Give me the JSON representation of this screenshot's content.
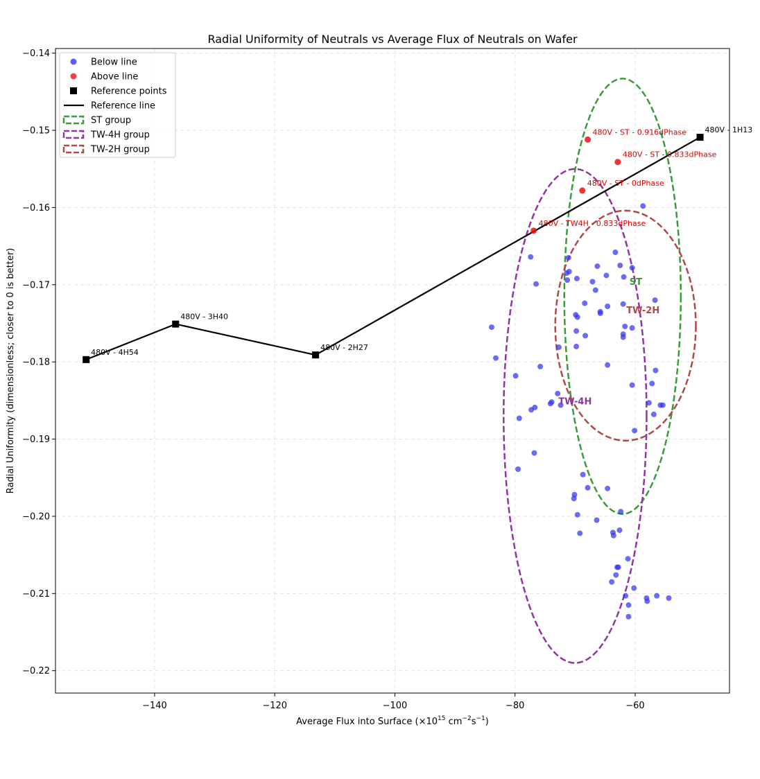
{
  "chart_data": {
    "type": "scatter",
    "title": "Radial Uniformity of Neutrals vs Average Flux of Neutrals on Wafer",
    "xlabel": "Average Flux into Surface (×10",
    "xlabel_exp": "15",
    "xlabel_unit": " cm",
    "xlabel_unit_exp": "−2",
    "xlabel_unit2": "s",
    "xlabel_unit2_exp": "−1",
    "xlabel_close": ")",
    "ylabel": "Radial Uniformity (dimensionless; closer to 0 is better)",
    "xlim": [
      -156.5,
      -44.3
    ],
    "ylim": [
      -0.2229,
      -0.1394
    ],
    "xticks": [
      -140,
      -120,
      -100,
      -80,
      -60
    ],
    "xtick_labels": [
      "−140",
      "−120",
      "−100",
      "−80",
      "−60"
    ],
    "yticks": [
      -0.22,
      -0.21,
      -0.2,
      -0.19,
      -0.18,
      -0.17,
      -0.16,
      -0.15,
      -0.14
    ],
    "ytick_labels": [
      "−0.22",
      "−0.21",
      "−0.20",
      "−0.19",
      "−0.18",
      "−0.17",
      "−0.16",
      "−0.15",
      "−0.14"
    ],
    "grid": true,
    "legend_position": "upper-left",
    "legend": [
      {
        "label": "Below line",
        "kind": "dot",
        "color": "#3333ee"
      },
      {
        "label": "Above line",
        "kind": "dot",
        "color": "#ee1111"
      },
      {
        "label": "Reference points",
        "kind": "square",
        "color": "#000000"
      },
      {
        "label": "Reference line",
        "kind": "line",
        "color": "#000000"
      },
      {
        "label": "ST group",
        "kind": "dashed",
        "color": "#3a9a3a"
      },
      {
        "label": "TW-4H group",
        "kind": "dashed",
        "color": "#8e35a0"
      },
      {
        "label": "TW-2H group",
        "kind": "dashed",
        "color": "#b04848"
      }
    ],
    "colors": {
      "below": "#3333ee",
      "above": "#ee1111",
      "reference": "#000000"
    },
    "reference_points": [
      {
        "x": -151.4,
        "y": -0.1797,
        "label": "480V - 4H54"
      },
      {
        "x": -136.5,
        "y": -0.1751,
        "label": "480V - 3H40"
      },
      {
        "x": -113.2,
        "y": -0.1791,
        "label": "480V - 2H27"
      },
      {
        "x": -49.2,
        "y": -0.1509,
        "label": "480V - 1H13"
      }
    ],
    "above_points": [
      {
        "x": -67.9,
        "y": -0.1512,
        "label": "480V - ST - 0.916dPhase"
      },
      {
        "x": -62.9,
        "y": -0.1541,
        "label": "480V - ST - 0.833dPhase"
      },
      {
        "x": -68.8,
        "y": -0.1578,
        "label": "480V - ST - 0dPhase"
      },
      {
        "x": -76.9,
        "y": -0.163,
        "label": "480V - TW4H - 0.833dPhase"
      }
    ],
    "below_points": [
      [
        -58.7,
        -0.1598
      ],
      [
        -63.3,
        -0.1658
      ],
      [
        -77.4,
        -0.1664
      ],
      [
        -71.1,
        -0.1665
      ],
      [
        -66.3,
        -0.1676
      ],
      [
        -62.5,
        -0.1675
      ],
      [
        -60.5,
        -0.1678
      ],
      [
        -71.0,
        -0.1683
      ],
      [
        -71.4,
        -0.1685
      ],
      [
        -64.8,
        -0.1688
      ],
      [
        -61.9,
        -0.169
      ],
      [
        -69.7,
        -0.1692
      ],
      [
        -71.3,
        -0.1694
      ],
      [
        -67.1,
        -0.1696
      ],
      [
        -76.5,
        -0.1699
      ],
      [
        -66.6,
        -0.1707
      ],
      [
        -56.7,
        -0.172
      ],
      [
        -68.4,
        -0.1724
      ],
      [
        -62.0,
        -0.1725
      ],
      [
        -64.6,
        -0.1728
      ],
      [
        -65.8,
        -0.1735
      ],
      [
        -65.8,
        -0.1737
      ],
      [
        -69.9,
        -0.1739
      ],
      [
        -69.6,
        -0.1742
      ],
      [
        -83.9,
        -0.1755
      ],
      [
        -61.7,
        -0.1754
      ],
      [
        -60.5,
        -0.1756
      ],
      [
        -69.8,
        -0.176
      ],
      [
        -62.0,
        -0.1764
      ],
      [
        -68.3,
        -0.1766
      ],
      [
        -62.0,
        -0.1768
      ],
      [
        -69.8,
        -0.178
      ],
      [
        -72.7,
        -0.1781
      ],
      [
        -64.6,
        -0.1804
      ],
      [
        -75.8,
        -0.1806
      ],
      [
        -56.6,
        -0.1811
      ],
      [
        -83.2,
        -0.1795
      ],
      [
        -79.9,
        -0.1818
      ],
      [
        -57.2,
        -0.1828
      ],
      [
        -60.5,
        -0.183
      ],
      [
        -72.9,
        -0.1841
      ],
      [
        -73.9,
        -0.1852
      ],
      [
        -74.1,
        -0.1854
      ],
      [
        -57.7,
        -0.1853
      ],
      [
        -72.4,
        -0.1856
      ],
      [
        -55.8,
        -0.1856
      ],
      [
        -55.4,
        -0.1856
      ],
      [
        -76.7,
        -0.1859
      ],
      [
        -77.3,
        -0.1862
      ],
      [
        -56.9,
        -0.1868
      ],
      [
        -79.3,
        -0.1873
      ],
      [
        -60.1,
        -0.1889
      ],
      [
        -76.8,
        -0.1918
      ],
      [
        -79.5,
        -0.1939
      ],
      [
        -68.7,
        -0.1946
      ],
      [
        -67.9,
        -0.1963
      ],
      [
        -64.6,
        -0.1964
      ],
      [
        -70.1,
        -0.1972
      ],
      [
        -70.2,
        -0.1977
      ],
      [
        -69.6,
        -0.1998
      ],
      [
        -62.4,
        -0.1994
      ],
      [
        -66.4,
        -0.2005
      ],
      [
        -62.6,
        -0.2018
      ],
      [
        -63.7,
        -0.2021
      ],
      [
        -69.2,
        -0.2022
      ],
      [
        -63.6,
        -0.2025
      ],
      [
        -61.2,
        -0.2055
      ],
      [
        -63.0,
        -0.2066
      ],
      [
        -62.8,
        -0.2066
      ],
      [
        -63.2,
        -0.2076
      ],
      [
        -63.9,
        -0.2085
      ],
      [
        -60.2,
        -0.2093
      ],
      [
        -61.6,
        -0.2103
      ],
      [
        -56.4,
        -0.2103
      ],
      [
        -58.1,
        -0.2106
      ],
      [
        -54.4,
        -0.2106
      ],
      [
        -58.0,
        -0.211
      ],
      [
        -61.1,
        -0.2115
      ],
      [
        -61.1,
        -0.213
      ]
    ],
    "groups": [
      {
        "name": "ST group",
        "label": "ST",
        "color": "#3a9a3a",
        "cx": -62.1,
        "cy": -0.1715,
        "rx": 9.7,
        "ry": 0.0282,
        "label_x": -59.9,
        "label_y": -0.17
      },
      {
        "name": "TW-4H group",
        "label": "TW-4H",
        "color": "#8e35a0",
        "cx": -70.0,
        "cy": -0.187,
        "rx": 11.9,
        "ry": 0.032,
        "label_x": -70.0,
        "label_y": -0.1855
      },
      {
        "name": "TW-2H group",
        "label": "TW-2H",
        "color": "#b04848",
        "cx": -61.6,
        "cy": -0.1753,
        "rx": 11.7,
        "ry": 0.0149,
        "label_x": -58.7,
        "label_y": -0.1737
      }
    ]
  }
}
